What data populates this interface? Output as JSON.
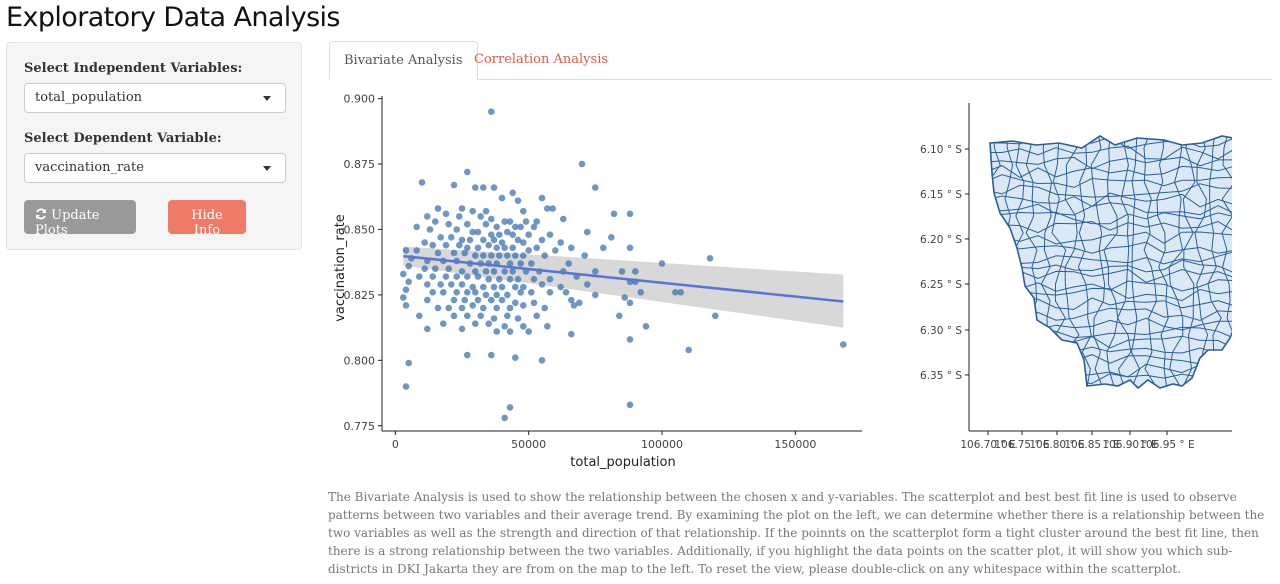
{
  "app_title": "Exploratory Data Analysis",
  "sidebar": {
    "independent_label": "Select Independent Variables:",
    "independent_value": "total_population",
    "dependent_label": "Select Dependent Variable:",
    "dependent_value": "vaccination_rate",
    "update_label": "Update Plots",
    "hide_label": "Hide Info",
    "update_icon": "refresh-icon"
  },
  "tabs": [
    {
      "label": "Bivariate Analysis",
      "active": true
    },
    {
      "label": "Correlation Analysis",
      "active": false
    }
  ],
  "description": "The Bivariate Analysis is used to show the relationship between the chosen x and y-variables. The scatterplot and best best fit line is used to observe patterns between two variables and their average trend. By examining the plot on the left, we can determine whether there is a relationship between the two variables as well as the strength and direction of that relationship. If the poinnts on the scatterplot form a tight cluster around the best fit line, then there is a strong relationship between the two variables. Additionally, if you highlight the data points on the scatter plot, it will show you which sub-districts in DKI Jakarta they are from on the map to the left. To reset the view, please double-click on any whitespace within the scatterplot.",
  "colors": {
    "point": "#3d74b0",
    "trend": "#5a74d6",
    "band": "#d4d4d4",
    "map_fill": "#dbe8f5",
    "map_line": "#2c5e9e",
    "hide_button": "#f07a68",
    "update_button": "#999999",
    "tab_link": "#e05a4a"
  },
  "chart_data": [
    {
      "type": "scatter",
      "xlabel": "total_population",
      "ylabel": "vaccination_rate",
      "xlim": [
        -5000,
        175000
      ],
      "ylim": [
        0.773,
        0.901
      ],
      "x_ticks": [
        0,
        50000,
        100000,
        150000
      ],
      "y_ticks": [
        0.775,
        0.8,
        0.825,
        0.85,
        0.875,
        0.9
      ],
      "x_tick_labels": [
        "0",
        "50000",
        "100000",
        "150000"
      ],
      "y_tick_labels": [
        "0.775",
        "0.800",
        "0.825",
        "0.850",
        "0.875",
        "0.900"
      ],
      "trend": {
        "x": [
          3000,
          168000
        ],
        "y": [
          0.8398,
          0.8225
        ],
        "band_upper": [
          0.8435,
          0.8328
        ],
        "band_lower": [
          0.8362,
          0.8125
        ]
      },
      "grid": false,
      "points": [
        [
          36000,
          0.895
        ],
        [
          70000,
          0.875
        ],
        [
          27000,
          0.872
        ],
        [
          75000,
          0.866
        ],
        [
          10000,
          0.868
        ],
        [
          22000,
          0.867
        ],
        [
          30000,
          0.866
        ],
        [
          33000,
          0.866
        ],
        [
          37000,
          0.866
        ],
        [
          44000,
          0.864
        ],
        [
          55000,
          0.862
        ],
        [
          40000,
          0.862
        ],
        [
          46000,
          0.861
        ],
        [
          57000,
          0.858
        ],
        [
          59000,
          0.858
        ],
        [
          16000,
          0.858
        ],
        [
          19000,
          0.856
        ],
        [
          25000,
          0.858
        ],
        [
          29000,
          0.857
        ],
        [
          34000,
          0.857
        ],
        [
          48000,
          0.857
        ],
        [
          82000,
          0.856
        ],
        [
          88000,
          0.856
        ],
        [
          12000,
          0.855
        ],
        [
          24000,
          0.855
        ],
        [
          32000,
          0.855
        ],
        [
          36000,
          0.854
        ],
        [
          41000,
          0.853
        ],
        [
          43000,
          0.853
        ],
        [
          49000,
          0.853
        ],
        [
          53000,
          0.853
        ],
        [
          63000,
          0.854
        ],
        [
          15000,
          0.853
        ],
        [
          20000,
          0.852
        ],
        [
          27000,
          0.852
        ],
        [
          34000,
          0.852
        ],
        [
          38000,
          0.851
        ],
        [
          45000,
          0.851
        ],
        [
          47000,
          0.851
        ],
        [
          52000,
          0.851
        ],
        [
          8000,
          0.851
        ],
        [
          13000,
          0.85
        ],
        [
          23000,
          0.85
        ],
        [
          29000,
          0.849
        ],
        [
          31000,
          0.849
        ],
        [
          36000,
          0.848
        ],
        [
          39000,
          0.848
        ],
        [
          42000,
          0.849
        ],
        [
          44000,
          0.848
        ],
        [
          50000,
          0.848
        ],
        [
          58000,
          0.848
        ],
        [
          72000,
          0.849
        ],
        [
          17000,
          0.847
        ],
        [
          21000,
          0.847
        ],
        [
          25000,
          0.846
        ],
        [
          28000,
          0.846
        ],
        [
          33000,
          0.846
        ],
        [
          37000,
          0.846
        ],
        [
          40000,
          0.845
        ],
        [
          46000,
          0.846
        ],
        [
          48000,
          0.845
        ],
        [
          55000,
          0.846
        ],
        [
          62000,
          0.845
        ],
        [
          81000,
          0.847
        ],
        [
          11000,
          0.845
        ],
        [
          14000,
          0.844
        ],
        [
          19000,
          0.844
        ],
        [
          24000,
          0.844
        ],
        [
          27000,
          0.843
        ],
        [
          31000,
          0.843
        ],
        [
          35000,
          0.844
        ],
        [
          38000,
          0.843
        ],
        [
          41000,
          0.843
        ],
        [
          44000,
          0.843
        ],
        [
          50000,
          0.842
        ],
        [
          53000,
          0.843
        ],
        [
          60000,
          0.842
        ],
        [
          66000,
          0.843
        ],
        [
          78000,
          0.843
        ],
        [
          88000,
          0.843
        ],
        [
          4000,
          0.842
        ],
        [
          8000,
          0.842
        ],
        [
          16000,
          0.841
        ],
        [
          22000,
          0.841
        ],
        [
          26000,
          0.841
        ],
        [
          30000,
          0.84
        ],
        [
          33000,
          0.84
        ],
        [
          36000,
          0.84
        ],
        [
          39000,
          0.84
        ],
        [
          42000,
          0.84
        ],
        [
          45000,
          0.84
        ],
        [
          48000,
          0.84
        ],
        [
          56000,
          0.84
        ],
        [
          71000,
          0.84
        ],
        [
          118000,
          0.839
        ],
        [
          6000,
          0.839
        ],
        [
          12000,
          0.838
        ],
        [
          18000,
          0.838
        ],
        [
          23000,
          0.838
        ],
        [
          28000,
          0.837
        ],
        [
          32000,
          0.837
        ],
        [
          35000,
          0.837
        ],
        [
          38000,
          0.837
        ],
        [
          43000,
          0.837
        ],
        [
          47000,
          0.837
        ],
        [
          51000,
          0.837
        ],
        [
          65000,
          0.837
        ],
        [
          100000,
          0.837
        ],
        [
          5000,
          0.836
        ],
        [
          11000,
          0.835
        ],
        [
          15000,
          0.835
        ],
        [
          20000,
          0.835
        ],
        [
          25000,
          0.834
        ],
        [
          30000,
          0.834
        ],
        [
          34000,
          0.834
        ],
        [
          37000,
          0.834
        ],
        [
          41000,
          0.834
        ],
        [
          44000,
          0.834
        ],
        [
          49000,
          0.834
        ],
        [
          54000,
          0.834
        ],
        [
          63000,
          0.834
        ],
        [
          75000,
          0.834
        ],
        [
          85000,
          0.834
        ],
        [
          90000,
          0.834
        ],
        [
          3000,
          0.833
        ],
        [
          9000,
          0.832
        ],
        [
          14000,
          0.832
        ],
        [
          19000,
          0.832
        ],
        [
          23000,
          0.832
        ],
        [
          27000,
          0.832
        ],
        [
          31000,
          0.832
        ],
        [
          35000,
          0.831
        ],
        [
          39000,
          0.831
        ],
        [
          43000,
          0.831
        ],
        [
          46000,
          0.831
        ],
        [
          52000,
          0.831
        ],
        [
          58000,
          0.831
        ],
        [
          68000,
          0.832
        ],
        [
          5000,
          0.83
        ],
        [
          12000,
          0.829
        ],
        [
          17000,
          0.829
        ],
        [
          21000,
          0.829
        ],
        [
          25000,
          0.829
        ],
        [
          29000,
          0.828
        ],
        [
          33000,
          0.828
        ],
        [
          37000,
          0.828
        ],
        [
          40000,
          0.828
        ],
        [
          45000,
          0.828
        ],
        [
          48000,
          0.828
        ],
        [
          55000,
          0.829
        ],
        [
          62000,
          0.828
        ],
        [
          72000,
          0.829
        ],
        [
          88000,
          0.83
        ],
        [
          90000,
          0.83
        ],
        [
          4000,
          0.827
        ],
        [
          14000,
          0.826
        ],
        [
          18000,
          0.826
        ],
        [
          23000,
          0.826
        ],
        [
          27000,
          0.826
        ],
        [
          30000,
          0.826
        ],
        [
          34000,
          0.825
        ],
        [
          38000,
          0.825
        ],
        [
          42000,
          0.825
        ],
        [
          47000,
          0.826
        ],
        [
          51000,
          0.826
        ],
        [
          58000,
          0.826
        ],
        [
          64000,
          0.826
        ],
        [
          75000,
          0.825
        ],
        [
          92000,
          0.826
        ],
        [
          105000,
          0.826
        ],
        [
          107000,
          0.826
        ],
        [
          3000,
          0.824
        ],
        [
          12000,
          0.823
        ],
        [
          22000,
          0.823
        ],
        [
          26000,
          0.823
        ],
        [
          31000,
          0.823
        ],
        [
          36000,
          0.823
        ],
        [
          40000,
          0.823
        ],
        [
          45000,
          0.822
        ],
        [
          52000,
          0.822
        ],
        [
          66000,
          0.823
        ],
        [
          69000,
          0.822
        ],
        [
          86000,
          0.824
        ],
        [
          4000,
          0.821
        ],
        [
          16000,
          0.82
        ],
        [
          20000,
          0.82
        ],
        [
          25000,
          0.82
        ],
        [
          29000,
          0.821
        ],
        [
          33000,
          0.82
        ],
        [
          38000,
          0.82
        ],
        [
          43000,
          0.82
        ],
        [
          48000,
          0.821
        ],
        [
          56000,
          0.82
        ],
        [
          67000,
          0.821
        ],
        [
          88000,
          0.822
        ],
        [
          9000,
          0.817
        ],
        [
          22000,
          0.817
        ],
        [
          27000,
          0.817
        ],
        [
          32000,
          0.817
        ],
        [
          37000,
          0.816
        ],
        [
          42000,
          0.817
        ],
        [
          46000,
          0.816
        ],
        [
          53000,
          0.817
        ],
        [
          84000,
          0.817
        ],
        [
          120000,
          0.817
        ],
        [
          18000,
          0.814
        ],
        [
          30000,
          0.814
        ],
        [
          35000,
          0.814
        ],
        [
          41000,
          0.813
        ],
        [
          48000,
          0.813
        ],
        [
          57000,
          0.813
        ],
        [
          94000,
          0.813
        ],
        [
          12000,
          0.812
        ],
        [
          25000,
          0.812
        ],
        [
          38000,
          0.811
        ],
        [
          43000,
          0.811
        ],
        [
          50000,
          0.811
        ],
        [
          66000,
          0.81
        ],
        [
          88000,
          0.808
        ],
        [
          110000,
          0.804
        ],
        [
          168000,
          0.806
        ],
        [
          27000,
          0.802
        ],
        [
          36000,
          0.802
        ],
        [
          45000,
          0.801
        ],
        [
          55000,
          0.8
        ],
        [
          5000,
          0.799
        ],
        [
          4000,
          0.79
        ],
        [
          43000,
          0.782
        ],
        [
          41000,
          0.778
        ],
        [
          88000,
          0.783
        ]
      ]
    },
    {
      "type": "map",
      "x_ticks": [
        106.7,
        106.75,
        106.8,
        106.85,
        106.9,
        106.95
      ],
      "x_tick_labels": [
        "106.70 ° E",
        "106.75 ° E",
        "106.80 ° E",
        "106.85 ° E",
        "106.90 ° E",
        "106.95 ° E"
      ],
      "y_tick_labels": [
        "6.10 ° S",
        "6.15 ° S",
        "6.20 ° S",
        "6.25 ° S",
        "6.30 ° S",
        "6.35 ° S"
      ]
    }
  ]
}
